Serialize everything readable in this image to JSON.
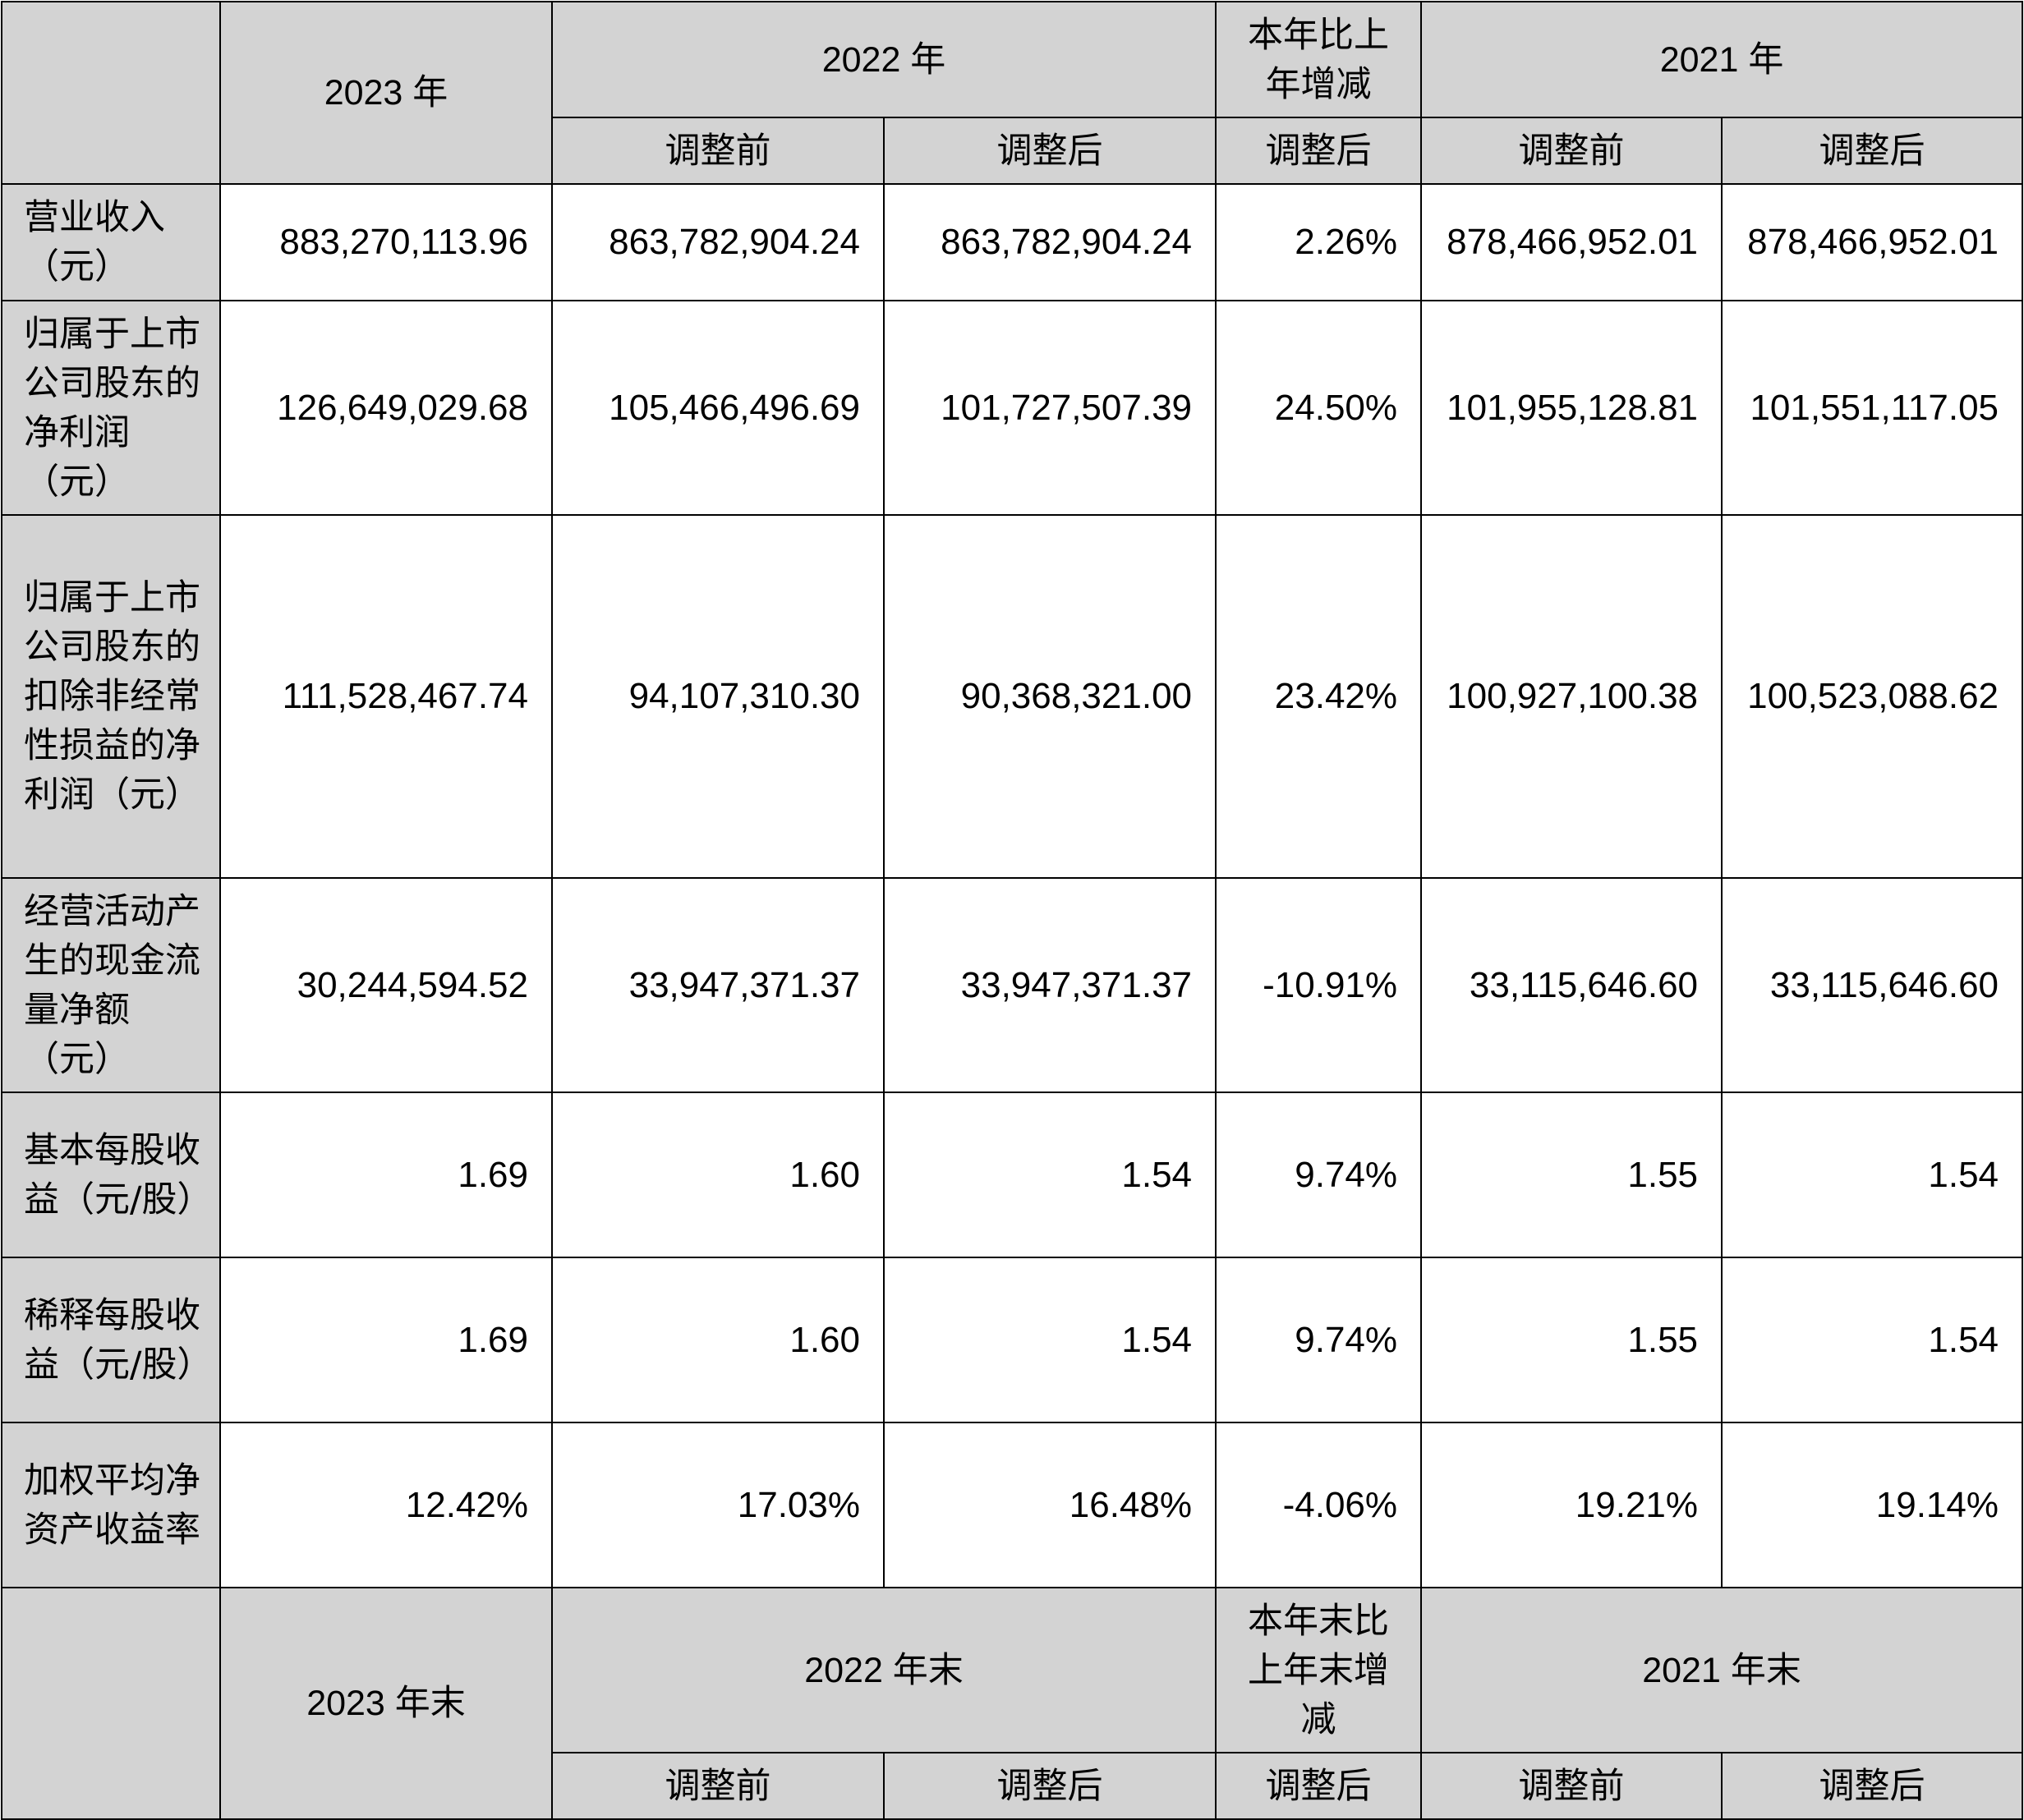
{
  "header_top": {
    "col1": "2023 年",
    "col2": "2022 年",
    "col3": "本年比上年增减",
    "col4": "2021 年"
  },
  "subheader_top": [
    "调整前",
    "调整后",
    "调整后",
    "调整前",
    "调整后"
  ],
  "rows": [
    {
      "label": "营业收入（元）",
      "values": [
        "883,270,113.96",
        "863,782,904.24",
        "863,782,904.24",
        "2.26%",
        "878,466,952.01",
        "878,466,952.01"
      ]
    },
    {
      "label": "归属于上市公司股东的净利润（元）",
      "values": [
        "126,649,029.68",
        "105,466,496.69",
        "101,727,507.39",
        "24.50%",
        "101,955,128.81",
        "101,551,117.05"
      ]
    },
    {
      "label": "归属于上市公司股东的扣除非经常性损益的净利润（元）",
      "values": [
        "111,528,467.74",
        "94,107,310.30",
        "90,368,321.00",
        "23.42%",
        "100,927,100.38",
        "100,523,088.62"
      ]
    },
    {
      "label": "经营活动产生的现金流量净额（元）",
      "values": [
        "30,244,594.52",
        "33,947,371.37",
        "33,947,371.37",
        "-10.91%",
        "33,115,646.60",
        "33,115,646.60"
      ]
    },
    {
      "label": "基本每股收益（元/股）",
      "values": [
        "1.69",
        "1.60",
        "1.54",
        "9.74%",
        "1.55",
        "1.54"
      ]
    },
    {
      "label": "稀释每股收益（元/股）",
      "values": [
        "1.69",
        "1.60",
        "1.54",
        "9.74%",
        "1.55",
        "1.54"
      ]
    },
    {
      "label": "加权平均净资产收益率",
      "values": [
        "12.42%",
        "17.03%",
        "16.48%",
        "-4.06%",
        "19.21%",
        "19.14%"
      ]
    }
  ],
  "header_bottom": {
    "col1": "2023 年末",
    "col2": "2022 年末",
    "col3": "本年末比上年末增减",
    "col4": "2021 年末"
  },
  "subheader_bottom": [
    "调整前",
    "调整后",
    "调整后",
    "调整前",
    "调整后"
  ]
}
